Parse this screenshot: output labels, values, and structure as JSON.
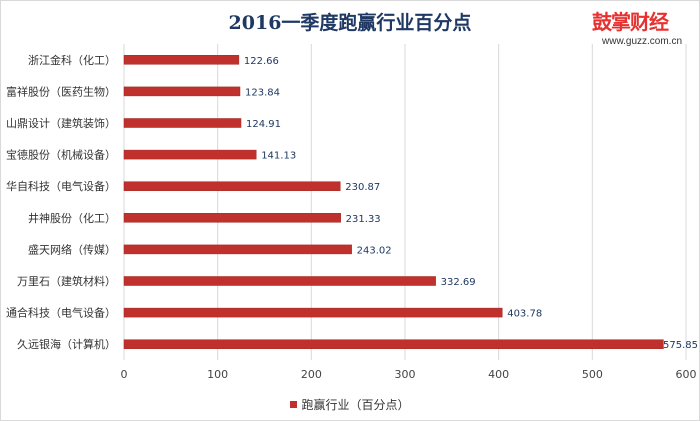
{
  "logo": {
    "text": "鼓掌财经",
    "url": "www.guzz.com.cn"
  },
  "colors": {
    "bar": "#c0312d",
    "bar_edge": "#9e2420",
    "grid": "#d9d9d9",
    "title": "#1f3864",
    "logo": "#e8312f"
  },
  "chart_data": {
    "type": "bar",
    "orientation": "horizontal",
    "title": "2016一季度跑赢行业百分点",
    "xlabel": "",
    "ylabel": "",
    "xlim": [
      0,
      600
    ],
    "xticks": [
      0,
      100,
      200,
      300,
      400,
      500,
      600
    ],
    "grid": true,
    "legend_position": "bottom",
    "categories": [
      "浙江金科（化工）",
      "富祥股份（医药生物）",
      "山鼎设计（建筑装饰）",
      "宝德股份（机械设备）",
      "华自科技（电气设备）",
      "井神股份（化工）",
      "盛天网络（传媒）",
      "万里石（建筑材料）",
      "通合科技（电气设备）",
      "久远银海（计算机）"
    ],
    "series": [
      {
        "name": "跑赢行业（百分点）",
        "values": [
          122.66,
          123.84,
          124.91,
          141.13,
          230.87,
          231.33,
          243.02,
          332.69,
          403.78,
          575.85
        ]
      }
    ]
  }
}
